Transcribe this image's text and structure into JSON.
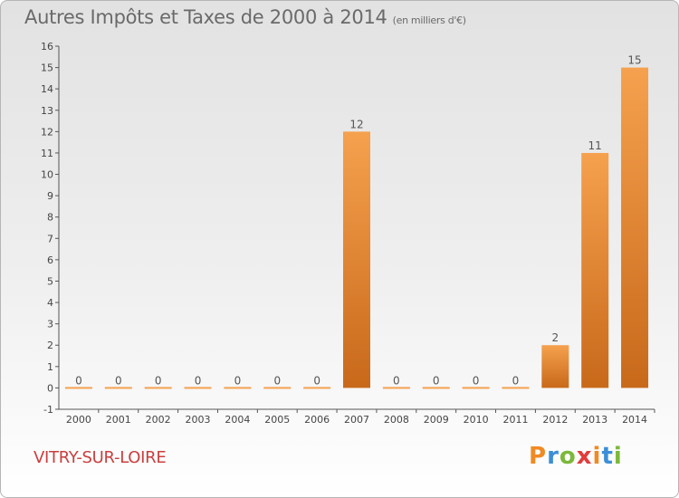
{
  "header": {
    "title": "Autres Impôts et Taxes de 2000 à 2014",
    "subtitle": "(en milliers d'€)"
  },
  "footer": {
    "commune": "VITRY-SUR-LOIRE",
    "logo": "Proxiti"
  },
  "colors": {
    "bar_light": "#f5a14e",
    "bar_dark": "#c8691a",
    "commune": "#c93f3f",
    "logo_letters": [
      "#f08a24",
      "#3b8fd6",
      "#7bb93a",
      "#e33b3b",
      "#f08a24",
      "#3b8fd6",
      "#7bb93a"
    ]
  },
  "chart_data": {
    "type": "bar",
    "title": "Autres Impôts et Taxes de 2000 à 2014",
    "categories": [
      "2000",
      "2001",
      "2002",
      "2003",
      "2004",
      "2005",
      "2006",
      "2007",
      "2008",
      "2009",
      "2010",
      "2011",
      "2012",
      "2013",
      "2014"
    ],
    "values": [
      0,
      0,
      0,
      0,
      0,
      0,
      0,
      12,
      0,
      0,
      0,
      0,
      2,
      11,
      15
    ],
    "data_labels": [
      "0",
      "0",
      "0",
      "0",
      "0",
      "0",
      "0",
      "12",
      "0",
      "0",
      "0",
      "0",
      "2",
      "11",
      "15"
    ],
    "y_ticks": [
      -1,
      0,
      1,
      2,
      3,
      4,
      5,
      6,
      7,
      8,
      9,
      10,
      11,
      12,
      13,
      14,
      15,
      16
    ],
    "ylim": [
      -1,
      16
    ],
    "grid": false,
    "legend": "none"
  }
}
